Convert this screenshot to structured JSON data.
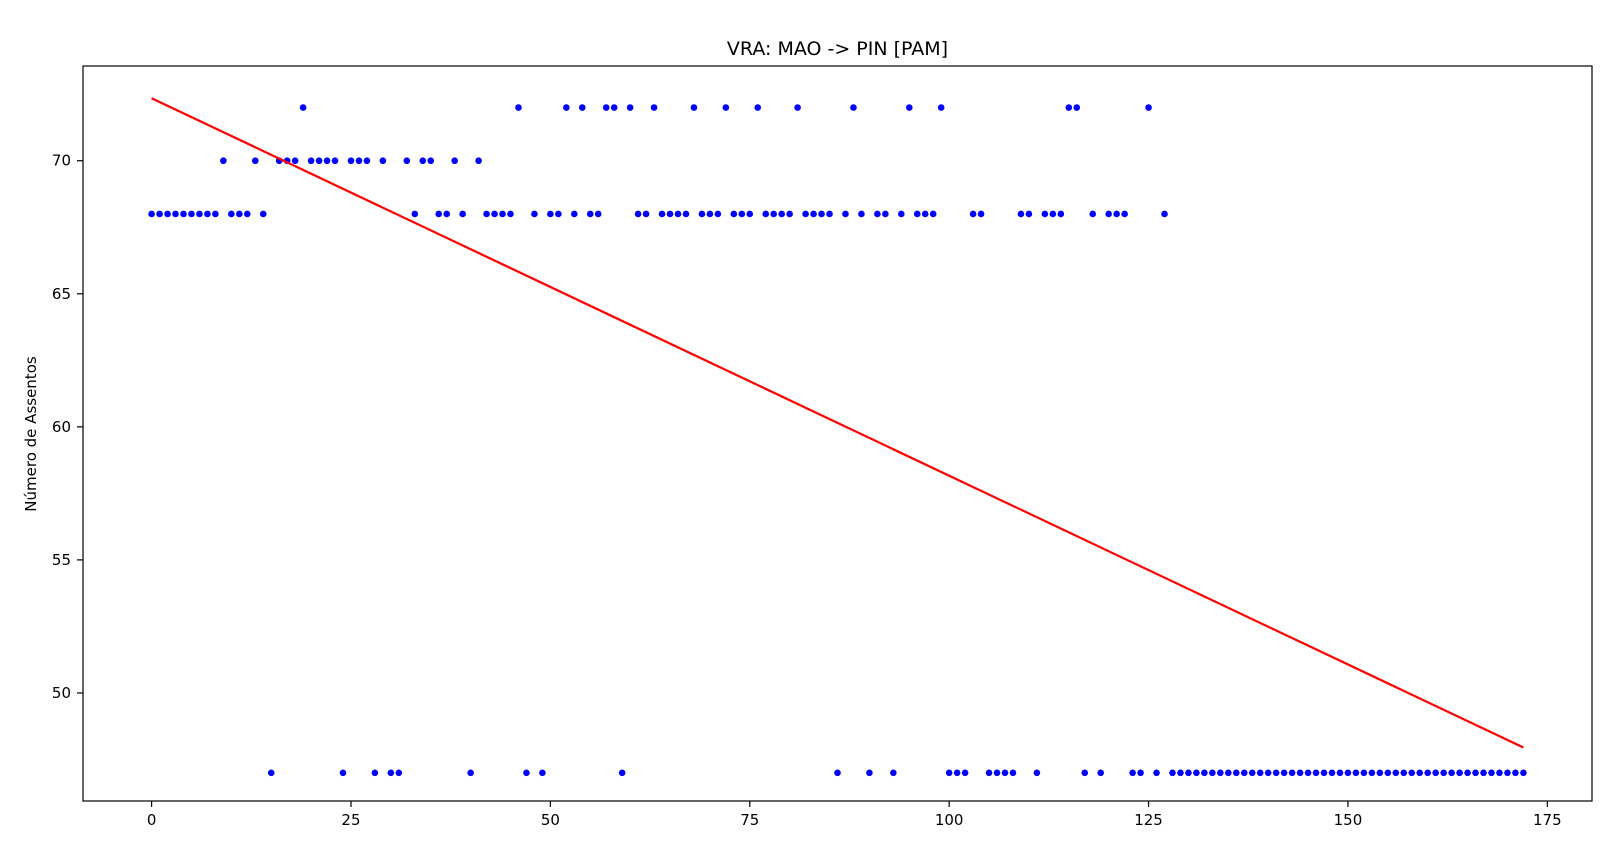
{
  "chart_data": {
    "type": "scatter",
    "title": "VRA: MAO -> PIN [PAM]",
    "xlabel": "",
    "ylabel": "Número de Assentos",
    "xlim": [
      -8.6,
      180.6
    ],
    "ylim": [
      45.94,
      73.56
    ],
    "x_ticks": [
      0,
      25,
      50,
      75,
      100,
      125,
      150,
      175
    ],
    "y_ticks": [
      50,
      55,
      60,
      65,
      70
    ],
    "grid": false,
    "point_color": "#0000ff",
    "line_color": "#ff0000",
    "x": [
      0,
      1,
      2,
      3,
      4,
      5,
      6,
      7,
      8,
      9,
      10,
      11,
      12,
      13,
      14,
      15,
      16,
      17,
      18,
      19,
      20,
      21,
      22,
      23,
      24,
      25,
      26,
      27,
      28,
      29,
      30,
      31,
      32,
      33,
      34,
      35,
      36,
      37,
      38,
      39,
      40,
      41,
      42,
      43,
      44,
      45,
      46,
      47,
      48,
      49,
      50,
      51,
      52,
      53,
      54,
      55,
      56,
      57,
      58,
      59,
      60,
      61,
      62,
      63,
      64,
      65,
      66,
      67,
      68,
      69,
      70,
      71,
      72,
      73,
      74,
      75,
      76,
      77,
      78,
      79,
      80,
      81,
      82,
      83,
      84,
      85,
      86,
      87,
      88,
      89,
      90,
      91,
      92,
      93,
      94,
      95,
      96,
      97,
      98,
      99,
      100,
      101,
      102,
      103,
      104,
      105,
      106,
      107,
      108,
      109,
      110,
      111,
      112,
      113,
      114,
      115,
      116,
      117,
      118,
      119,
      120,
      121,
      122,
      123,
      124,
      125,
      126,
      127,
      128,
      129,
      130,
      131,
      132,
      133,
      134,
      135,
      136,
      137,
      138,
      139,
      140,
      141,
      142,
      143,
      144,
      145,
      146,
      147,
      148,
      149,
      150,
      151,
      152,
      153,
      154,
      155,
      156,
      157,
      158,
      159,
      160,
      161,
      162,
      163,
      164,
      165,
      166,
      167,
      168,
      169,
      170,
      171,
      172
    ],
    "y": [
      68,
      68,
      68,
      68,
      68,
      68,
      68,
      68,
      68,
      70,
      68,
      68,
      68,
      70,
      68,
      47,
      70,
      70,
      70,
      72,
      70,
      70,
      70,
      70,
      47,
      70,
      70,
      70,
      47,
      70,
      47,
      47,
      70,
      68,
      70,
      70,
      68,
      68,
      70,
      68,
      47,
      70,
      68,
      68,
      68,
      68,
      72,
      47,
      68,
      47,
      68,
      68,
      72,
      68,
      72,
      68,
      68,
      72,
      72,
      47,
      72,
      68,
      68,
      72,
      68,
      68,
      68,
      68,
      72,
      68,
      68,
      68,
      72,
      68,
      68,
      68,
      72,
      68,
      68,
      68,
      68,
      72,
      68,
      68,
      68,
      68,
      47,
      68,
      72,
      68,
      47,
      68,
      68,
      47,
      68,
      72,
      68,
      68,
      68,
      72,
      47,
      47,
      47,
      68,
      68,
      47,
      47,
      47,
      47,
      68,
      68,
      47,
      68,
      68,
      68,
      72,
      72,
      47,
      68,
      47,
      68,
      68,
      68,
      47,
      47,
      72,
      47,
      68,
      47,
      47,
      47,
      47,
      47,
      47,
      47,
      47,
      47,
      47,
      47,
      47,
      47,
      47,
      47,
      47,
      47,
      47,
      47,
      47,
      47,
      47,
      47,
      47,
      47,
      47,
      47,
      47,
      47,
      47,
      47,
      47,
      47,
      47,
      47,
      47,
      47,
      47,
      47,
      47,
      47,
      47,
      47,
      47,
      47
    ],
    "trend_line": {
      "x": [
        0,
        172
      ],
      "y": [
        72.35,
        47.95
      ]
    }
  }
}
